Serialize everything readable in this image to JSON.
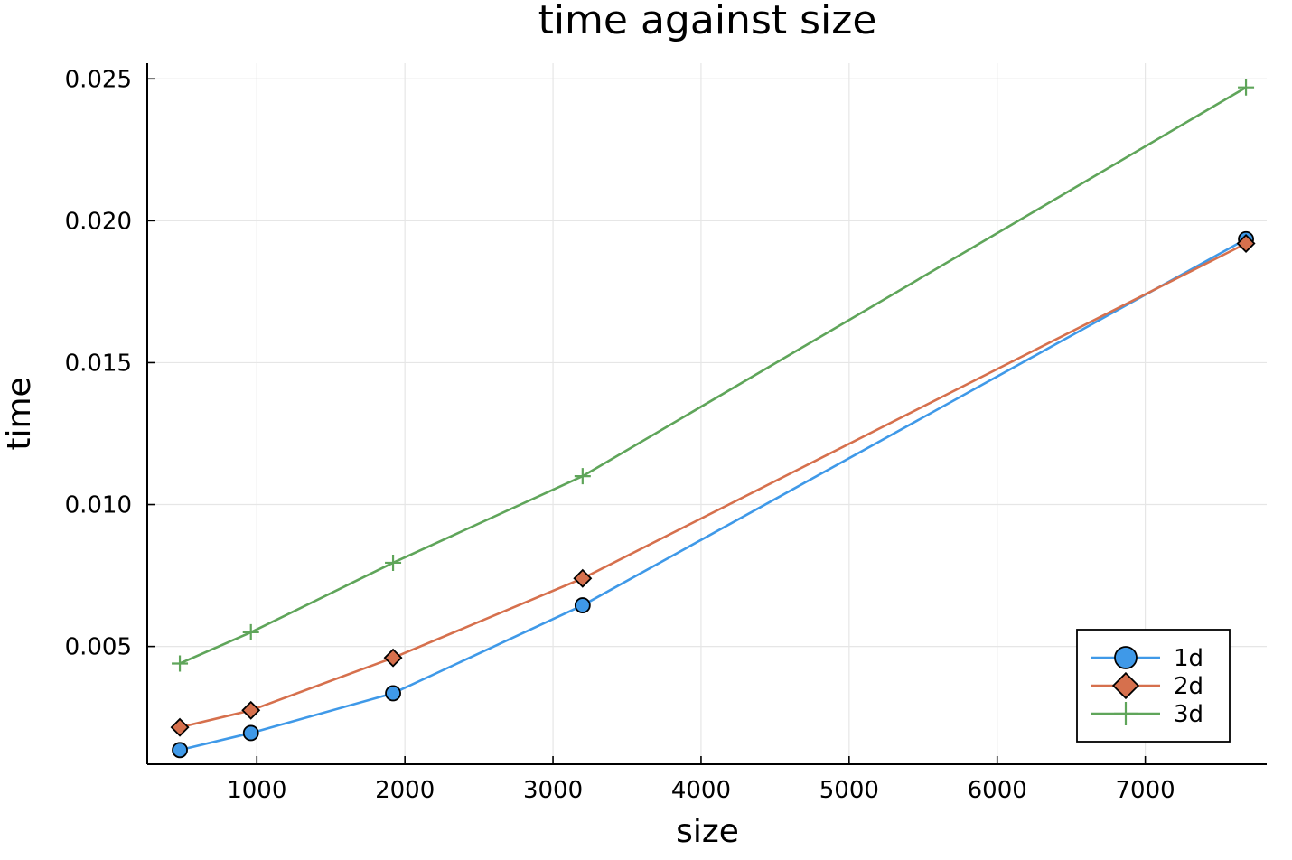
{
  "chart_data": {
    "type": "line",
    "title": "time against size",
    "xlabel": "size",
    "ylabel": "time",
    "xlim": [
      260,
      7820
    ],
    "ylim": [
      0.00085,
      0.02555
    ],
    "xticks": [
      1000,
      2000,
      3000,
      4000,
      5000,
      6000,
      7000
    ],
    "xtick_labels": [
      "1000",
      "2000",
      "3000",
      "4000",
      "5000",
      "6000",
      "7000"
    ],
    "yticks": [
      0.005,
      0.01,
      0.015,
      0.02,
      0.025
    ],
    "ytick_labels": [
      "0.005",
      "0.010",
      "0.015",
      "0.020",
      "0.025"
    ],
    "grid": true,
    "legend_position": "bottom-right",
    "x": [
      480,
      960,
      1920,
      3200,
      7680
    ],
    "series": [
      {
        "name": "1d",
        "color": "#3f99e8",
        "marker": "circle",
        "values": [
          0.00135,
          0.00195,
          0.00335,
          0.00645,
          0.01935
        ]
      },
      {
        "name": "2d",
        "color": "#d6704d",
        "marker": "diamond",
        "values": [
          0.00215,
          0.00275,
          0.0046,
          0.0074,
          0.0192
        ]
      },
      {
        "name": "3d",
        "color": "#5fa55a",
        "marker": "plus",
        "values": [
          0.0044,
          0.0055,
          0.00795,
          0.011,
          0.0247
        ]
      }
    ]
  }
}
